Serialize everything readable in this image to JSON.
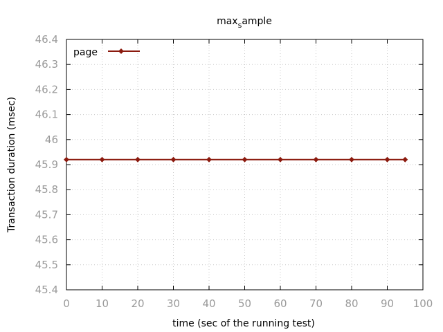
{
  "chart_data": {
    "type": "line",
    "title": "max_sample",
    "title_main": "max",
    "title_sub": "s",
    "title_rest": "ample",
    "xlabel": "time (sec of the running test)",
    "ylabel": "Transaction duration (msec)",
    "xlim": [
      0,
      100
    ],
    "ylim": [
      45.4,
      46.4
    ],
    "x_ticks": [
      "0",
      "10",
      "20",
      "30",
      "40",
      "50",
      "60",
      "70",
      "80",
      "90",
      "100"
    ],
    "y_ticks": [
      "45.4",
      "45.5",
      "45.6",
      "45.7",
      "45.8",
      "45.9",
      "46",
      "46.1",
      "46.2",
      "46.3",
      "46.4"
    ],
    "grid": true,
    "legend_position": "top-left",
    "series": [
      {
        "name": "page",
        "color": "#8b1a0e",
        "x": [
          0,
          10,
          20,
          30,
          40,
          50,
          60,
          70,
          80,
          90,
          95
        ],
        "y": [
          45.92,
          45.92,
          45.92,
          45.92,
          45.92,
          45.92,
          45.92,
          45.92,
          45.92,
          45.92,
          45.92
        ]
      }
    ]
  }
}
